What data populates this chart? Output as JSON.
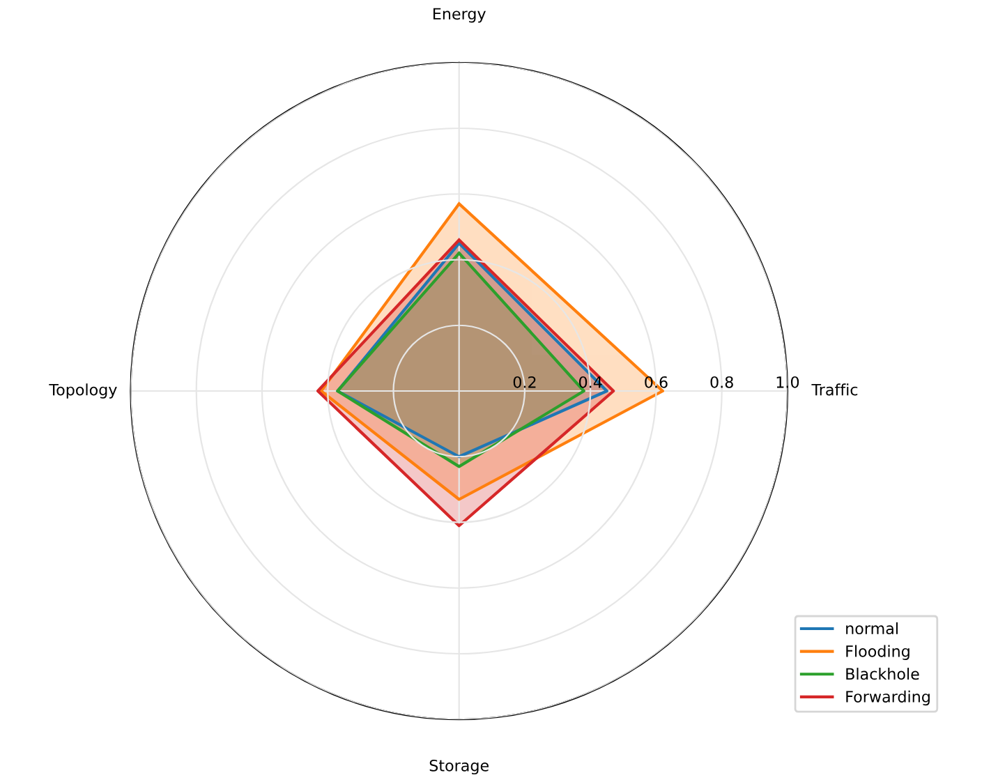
{
  "chart_data": {
    "type": "radar",
    "categories": [
      "Energy",
      "Traffic",
      "Storage",
      "Topology"
    ],
    "series": [
      {
        "name": "normal",
        "color": "#1f77b4",
        "values": [
          0.45,
          0.45,
          0.2,
          0.37
        ]
      },
      {
        "name": "Flooding",
        "color": "#ff7f0e",
        "values": [
          0.57,
          0.62,
          0.33,
          0.42
        ]
      },
      {
        "name": "Blackhole",
        "color": "#2ca02c",
        "values": [
          0.42,
          0.38,
          0.23,
          0.37
        ]
      },
      {
        "name": "Forwarding",
        "color": "#d62728",
        "values": [
          0.46,
          0.47,
          0.41,
          0.43
        ]
      }
    ],
    "ylim": [
      0,
      1.0
    ],
    "yticks": [
      0.2,
      0.4,
      0.6,
      0.8,
      {
        "value": 1.0,
        "label": "1.0"
      }
    ],
    "grid": true,
    "legend": "bottom right"
  }
}
